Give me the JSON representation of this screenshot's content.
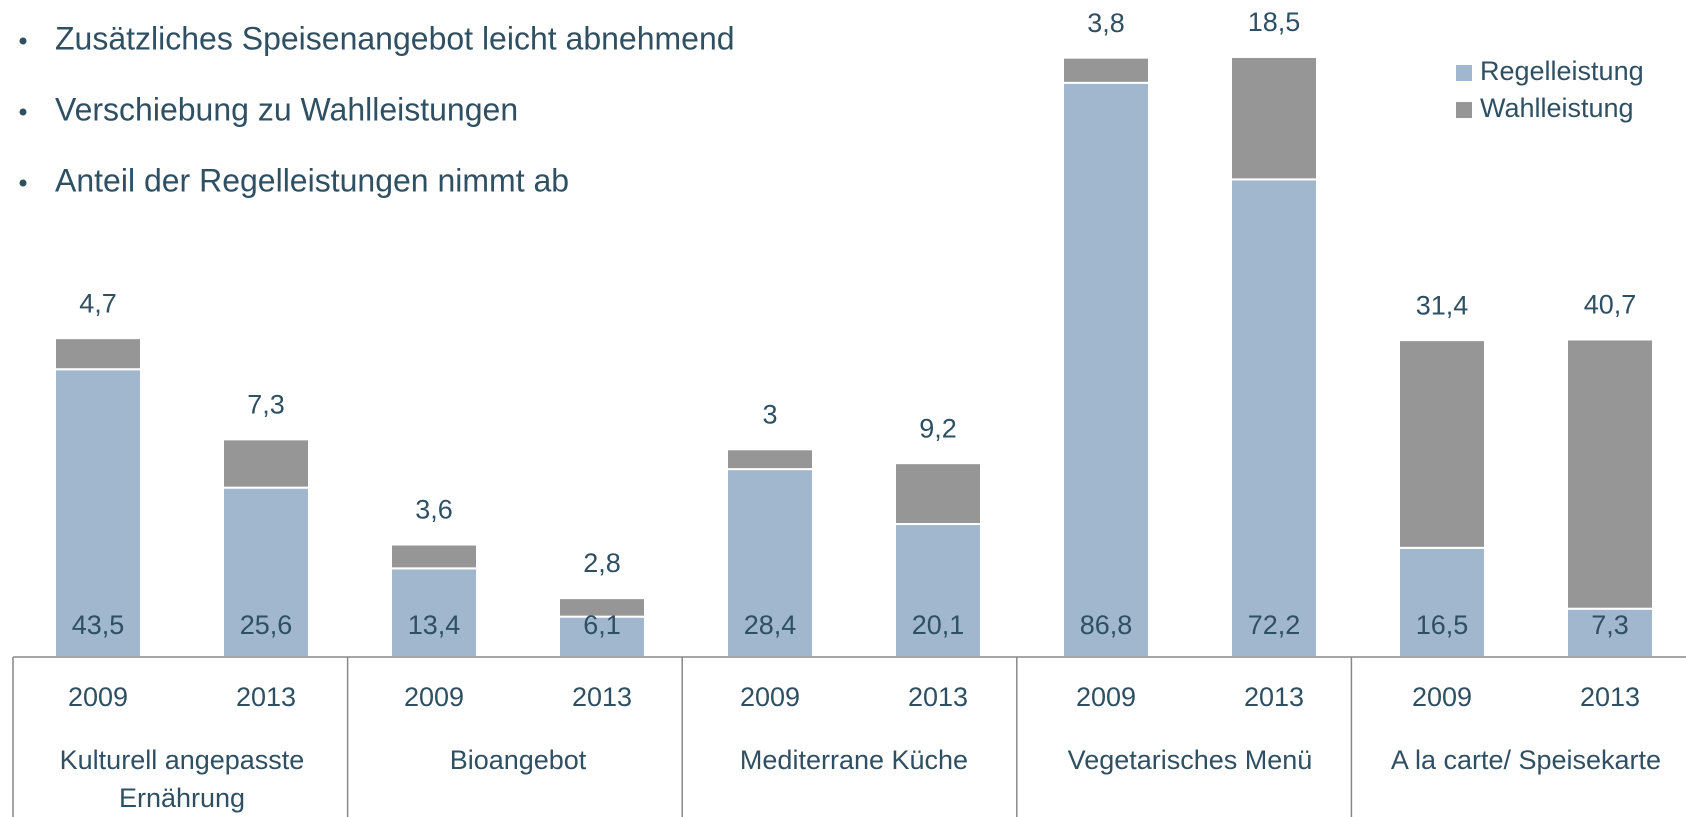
{
  "chart_data": {
    "type": "bar",
    "stacked": true,
    "annotations": [
      "Zusätzliches Speisenangebot leicht abnehmend",
      "Verschiebung zu Wahlleistungen",
      "Anteil der Regelleistungen nimmt  ab"
    ],
    "categories": [
      "2009",
      "2013",
      "2009",
      "2013",
      "2009",
      "2013",
      "2009",
      "2013",
      "2009",
      "2013"
    ],
    "groups": [
      "Kulturell angepasste Ernährung",
      "Bioangebot",
      "Mediterrane Küche",
      "Vegetarisches Menü",
      "A la carte/ Speisekarte"
    ],
    "series": [
      {
        "name": "Regelleistung",
        "color": "#a0b7cd",
        "values": [
          43.5,
          25.6,
          13.4,
          6.1,
          28.4,
          20.1,
          86.8,
          72.2,
          16.5,
          7.3
        ],
        "value_labels": [
          "43,5",
          "25,6",
          "13,4",
          "6,1",
          "28,4",
          "20,1",
          "86,8",
          "72,2",
          "16,5",
          "7,3"
        ]
      },
      {
        "name": "Wahlleistung",
        "color": "#969696",
        "values": [
          4.7,
          7.3,
          3.6,
          2.8,
          3,
          9.2,
          3.8,
          18.5,
          31.4,
          40.7
        ],
        "value_labels": [
          "4,7",
          "7,3",
          "3,6",
          "2,8",
          "3",
          "9,2",
          "3,8",
          "18,5",
          "31,4",
          "40,7"
        ]
      }
    ],
    "legend": "top-right"
  }
}
